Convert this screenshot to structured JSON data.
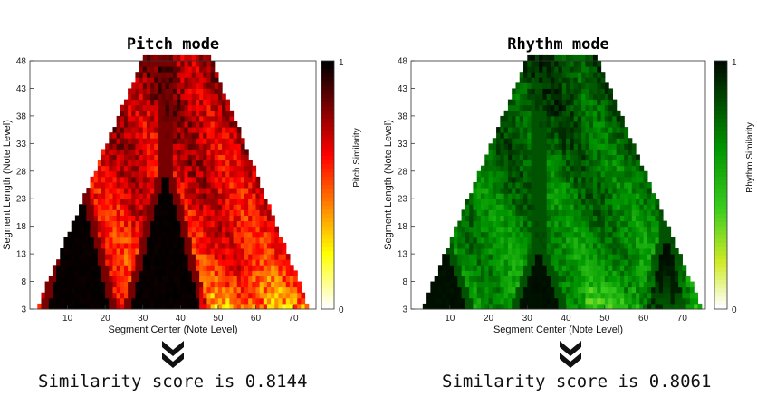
{
  "chart_data": [
    {
      "type": "heatmap",
      "title": "Pitch mode",
      "xlabel": "Segment Center (Note Level)",
      "ylabel": "Segment Length (Note Level)",
      "colorbar_label": "Pitch Similarity",
      "colorbar_ticks": [
        "1",
        "0"
      ],
      "colormap": "hot",
      "x_ticks": [
        "10",
        "20",
        "30",
        "40",
        "50",
        "60",
        "70"
      ],
      "y_ticks": [
        "48",
        "43",
        "38",
        "33",
        "28",
        "23",
        "18",
        "13",
        "8",
        "3"
      ],
      "xlim": [
        0,
        76
      ],
      "ylim": [
        3,
        48
      ],
      "valid_region": {
        "left": [
          2,
          30
        ],
        "right": [
          74,
          48
        ]
      },
      "dark_valleys": [
        {
          "center": 13,
          "width_at_base": 16,
          "top_length": 26
        },
        {
          "center": 36,
          "width_at_base": 18,
          "top_length": 28
        }
      ],
      "pattern": {
        "trend": 0.55,
        "noise": 0.12,
        "seed": 3
      },
      "score_text": "Similarity score is 0.8144"
    },
    {
      "type": "heatmap",
      "title": "Rhythm mode",
      "xlabel": "Segment Center (Note Level)",
      "ylabel": "Segment Length (Note Level)",
      "colorbar_label": "Rhythm Similarity",
      "colorbar_ticks": [
        "1",
        "0"
      ],
      "colormap": "green",
      "x_ticks": [
        "10",
        "20",
        "30",
        "40",
        "50",
        "60",
        "70"
      ],
      "y_ticks": [
        "48",
        "43",
        "38",
        "33",
        "28",
        "23",
        "18",
        "13",
        "8",
        "3"
      ],
      "xlim": [
        0,
        76
      ],
      "ylim": [
        3,
        48
      ],
      "valid_region": {
        "left": [
          3,
          30
        ],
        "right": [
          75,
          48
        ]
      },
      "dark_valleys": [
        {
          "center": 8,
          "width_at_base": 12,
          "top_length": 16
        },
        {
          "center": 33,
          "width_at_base": 10,
          "top_length": 14
        },
        {
          "center": 66,
          "width_at_base": 10,
          "top_length": 16
        }
      ],
      "pattern": {
        "trend": 0.62,
        "noise": 0.1,
        "seed": 7
      },
      "score_text": "Similarity score is 0.8061"
    }
  ],
  "icons": {
    "arrow": "double-chevron-down-icon"
  }
}
